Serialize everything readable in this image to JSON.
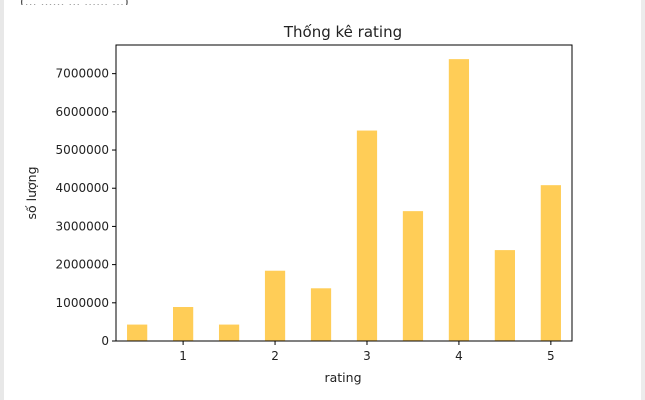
{
  "top_clip_text": "(… …… … …… …)",
  "chart_data": {
    "type": "bar",
    "title": "Thống kê rating",
    "xlabel": "rating",
    "ylabel": "số lượng",
    "x": [
      0.5,
      1.0,
      1.5,
      2.0,
      2.5,
      3.0,
      3.5,
      4.0,
      4.5,
      5.0
    ],
    "values": [
      430000,
      890000,
      430000,
      1840000,
      1380000,
      5510000,
      3400000,
      7380000,
      2380000,
      4080000
    ],
    "bar_color": "#ffcd57",
    "xticks": [
      1,
      2,
      3,
      4,
      5
    ],
    "yticks": [
      0,
      1000000,
      2000000,
      3000000,
      4000000,
      5000000,
      6000000,
      7000000
    ],
    "xlim": [
      0.27,
      5.23
    ],
    "ylim": [
      0,
      7750000
    ],
    "grid": false
  }
}
